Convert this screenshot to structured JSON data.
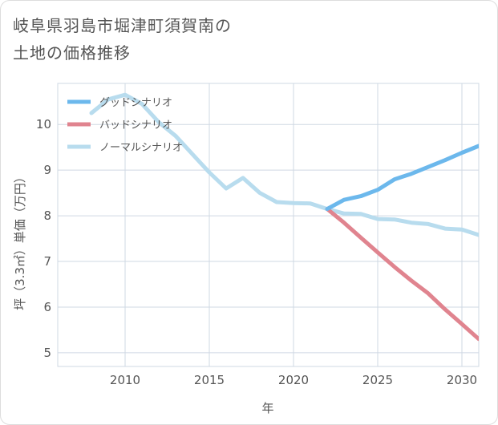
{
  "title_line1": "岐阜県羽島市堀津町須賀南の",
  "title_line2": "土地の価格推移",
  "chart_data": {
    "type": "line",
    "title": "岐阜県羽島市堀津町須賀南の土地の価格推移",
    "xlabel": "年",
    "ylabel": "坪（3.3㎡）単価（万円）",
    "xlim": [
      2006,
      2031
    ],
    "ylim": [
      4.7,
      10.9
    ],
    "xticks": [
      2010,
      2015,
      2020,
      2025,
      2030
    ],
    "yticks": [
      5,
      6,
      7,
      8,
      9,
      10
    ],
    "grid": true,
    "legend_position": "top-left",
    "series": [
      {
        "name": "グッドシナリオ",
        "color": "#6cb8ec",
        "x": [
          2022,
          2023,
          2024,
          2025,
          2026,
          2027,
          2028,
          2029,
          2030,
          2031
        ],
        "y": [
          8.15,
          8.35,
          8.43,
          8.57,
          8.8,
          8.92,
          9.07,
          9.22,
          9.38,
          9.53
        ]
      },
      {
        "name": "バッドシナリオ",
        "color": "#e0848f",
        "x": [
          2022,
          2023,
          2024,
          2025,
          2026,
          2027,
          2028,
          2029,
          2030,
          2031
        ],
        "y": [
          8.15,
          7.85,
          7.52,
          7.2,
          6.88,
          6.58,
          6.3,
          5.95,
          5.63,
          5.3
        ]
      },
      {
        "name": "ノーマルシナリオ",
        "color": "#b8dcee",
        "x": [
          2008,
          2009,
          2010,
          2011,
          2012,
          2013,
          2014,
          2015,
          2016,
          2017,
          2018,
          2019,
          2020,
          2021,
          2022,
          2023,
          2024,
          2025,
          2026,
          2027,
          2028,
          2029,
          2030,
          2031
        ],
        "y": [
          10.25,
          10.55,
          10.65,
          10.45,
          10.05,
          9.75,
          9.35,
          8.95,
          8.6,
          8.83,
          8.5,
          8.3,
          8.28,
          8.27,
          8.15,
          8.05,
          8.04,
          7.93,
          7.92,
          7.85,
          7.82,
          7.72,
          7.7,
          7.58
        ]
      }
    ]
  }
}
